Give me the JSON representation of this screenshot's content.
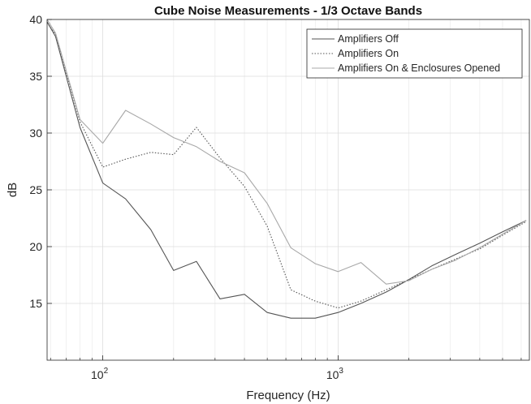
{
  "chart_data": {
    "type": "line",
    "title": "Cube Noise Measurements - 1/3 Octave Bands",
    "xlabel": "Frequency (Hz)",
    "ylabel": "dB",
    "xscale": "log",
    "xlim": [
      58,
      6500
    ],
    "ylim": [
      10,
      40
    ],
    "yticks": [
      15,
      20,
      25,
      30,
      35,
      40
    ],
    "xticks": [
      {
        "base": "10",
        "exp": "2",
        "value": 100
      },
      {
        "base": "10",
        "exp": "3",
        "value": 1000
      }
    ],
    "grid": true,
    "minor_grid": true,
    "legend_position": "top-right",
    "series": [
      {
        "name": "Amplifiers Off",
        "style": "solid",
        "color": "#555555",
        "x": [
          58,
          63,
          80,
          100,
          125,
          160,
          200,
          250,
          315,
          400,
          500,
          630,
          800,
          1000,
          1250,
          1600,
          2000,
          2500,
          3150,
          4000,
          5000,
          6300
        ],
        "y": [
          39.8,
          38.5,
          30.5,
          25.6,
          24.2,
          21.5,
          17.9,
          18.7,
          15.4,
          15.8,
          14.2,
          13.7,
          13.7,
          14.2,
          15.0,
          16.0,
          17.1,
          18.3,
          19.3,
          20.3,
          21.3,
          22.3
        ]
      },
      {
        "name": "Amplifiers On",
        "style": "dotted",
        "color": "#555555",
        "x": [
          58,
          63,
          80,
          100,
          125,
          160,
          200,
          250,
          315,
          400,
          500,
          630,
          800,
          1000,
          1250,
          1600,
          2000,
          2500,
          3150,
          4000,
          5000,
          6300
        ],
        "y": [
          39.7,
          38.7,
          31.0,
          27.0,
          27.7,
          28.3,
          28.1,
          30.5,
          27.8,
          25.3,
          21.8,
          16.2,
          15.2,
          14.6,
          15.2,
          16.2,
          17.1,
          18.0,
          18.9,
          19.8,
          21.0,
          22.2
        ]
      },
      {
        "name": "Amplifiers On & Enclosures Opened",
        "style": "solid",
        "color": "#a8a8a8",
        "x": [
          58,
          63,
          80,
          100,
          125,
          160,
          200,
          250,
          315,
          400,
          500,
          630,
          800,
          1000,
          1250,
          1600,
          2000,
          2500,
          3150,
          4000,
          5000,
          6300
        ],
        "y": [
          40.0,
          38.8,
          31.2,
          29.1,
          32.0,
          30.8,
          29.6,
          28.8,
          27.5,
          26.5,
          23.8,
          19.9,
          18.5,
          17.8,
          18.6,
          16.7,
          17.0,
          18.0,
          18.8,
          19.9,
          21.1,
          22.3
        ]
      }
    ]
  }
}
